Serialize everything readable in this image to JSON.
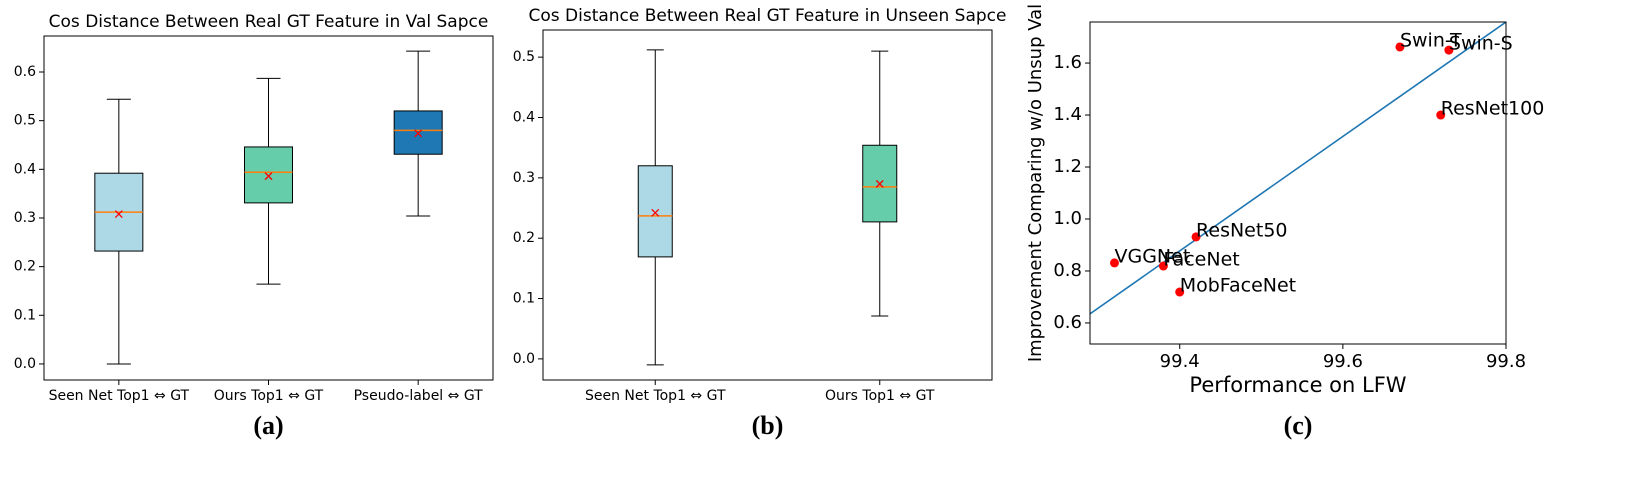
{
  "chart_data": [
    {
      "type": "box",
      "title": "Cos Distance Between Real GT Feature in Val Sapce",
      "caption": "(a)",
      "categories": [
        "Seen Net Top1 ⇔ GT",
        "Ours Top1 ⇔ GT",
        "Pseudo-label ⇔ GT"
      ],
      "boxes": [
        {
          "whisker_low": 0.0,
          "q1": 0.232,
          "median": 0.312,
          "q3": 0.392,
          "whisker_high": 0.544,
          "mean": 0.308,
          "color": "#add8e6"
        },
        {
          "whisker_low": 0.164,
          "q1": 0.331,
          "median": 0.394,
          "q3": 0.446,
          "whisker_high": 0.587,
          "mean": 0.386,
          "color": "#66cdaa"
        },
        {
          "whisker_low": 0.304,
          "q1": 0.431,
          "median": 0.48,
          "q3": 0.52,
          "whisker_high": 0.643,
          "mean": 0.474,
          "color": "#1f77b4"
        }
      ],
      "median_color": "#ff7f0e",
      "mean_color": "#ff0000",
      "ylim": [
        -0.033,
        0.674
      ],
      "yticks": [
        {
          "value": 0,
          "label": "0.0"
        },
        0.1,
        0.2,
        0.3,
        0.4,
        0.5,
        0.6
      ]
    },
    {
      "type": "box",
      "title": "Cos Distance Between Real GT Feature in Unseen Sapce",
      "caption": "(b)",
      "categories": [
        "Seen Net Top1 ⇔ GT",
        "Ours Top1 ⇔ GT"
      ],
      "boxes": [
        {
          "whisker_low": -0.01,
          "q1": 0.169,
          "median": 0.237,
          "q3": 0.32,
          "whisker_high": 0.512,
          "mean": 0.242,
          "color": "#add8e6"
        },
        {
          "whisker_low": 0.071,
          "q1": 0.227,
          "median": 0.285,
          "q3": 0.354,
          "whisker_high": 0.51,
          "mean": 0.29,
          "color": "#66cdaa"
        }
      ],
      "median_color": "#ff7f0e",
      "mean_color": "#ff0000",
      "ylim": [
        -0.035,
        0.545
      ],
      "yticks": [
        {
          "value": 0,
          "label": "0.0"
        },
        0.1,
        0.2,
        0.3,
        0.4,
        0.5
      ]
    },
    {
      "type": "scatter",
      "caption": "(c)",
      "x_label": "Performance on LFW",
      "y_label": "Improvement Comparing w/o Unsup Val",
      "labels": [
        "Swin-T",
        "Swin-S",
        "ResNet100",
        "ResNet50",
        "FaceNet",
        "VGGNet",
        "MobFaceNet"
      ],
      "x": [
        99.67,
        99.73,
        99.72,
        99.42,
        99.38,
        99.32,
        99.4
      ],
      "values": [
        1.662,
        1.65,
        1.4,
        0.931,
        0.819,
        0.831,
        0.719
      ],
      "color": "#ff0000",
      "trend_line": {
        "x": [
          99.29,
          99.8
        ],
        "y": [
          0.635,
          1.758
        ],
        "color": "#1f77b4"
      },
      "xlim": [
        99.29,
        99.8
      ],
      "xticks": [
        99.4,
        99.6,
        99.8
      ],
      "ylim": [
        0.519,
        1.758
      ],
      "yticks": [
        0.6,
        0.8,
        {
          "value": 1,
          "label": "1.0"
        },
        1.2,
        1.4,
        1.6
      ]
    }
  ]
}
